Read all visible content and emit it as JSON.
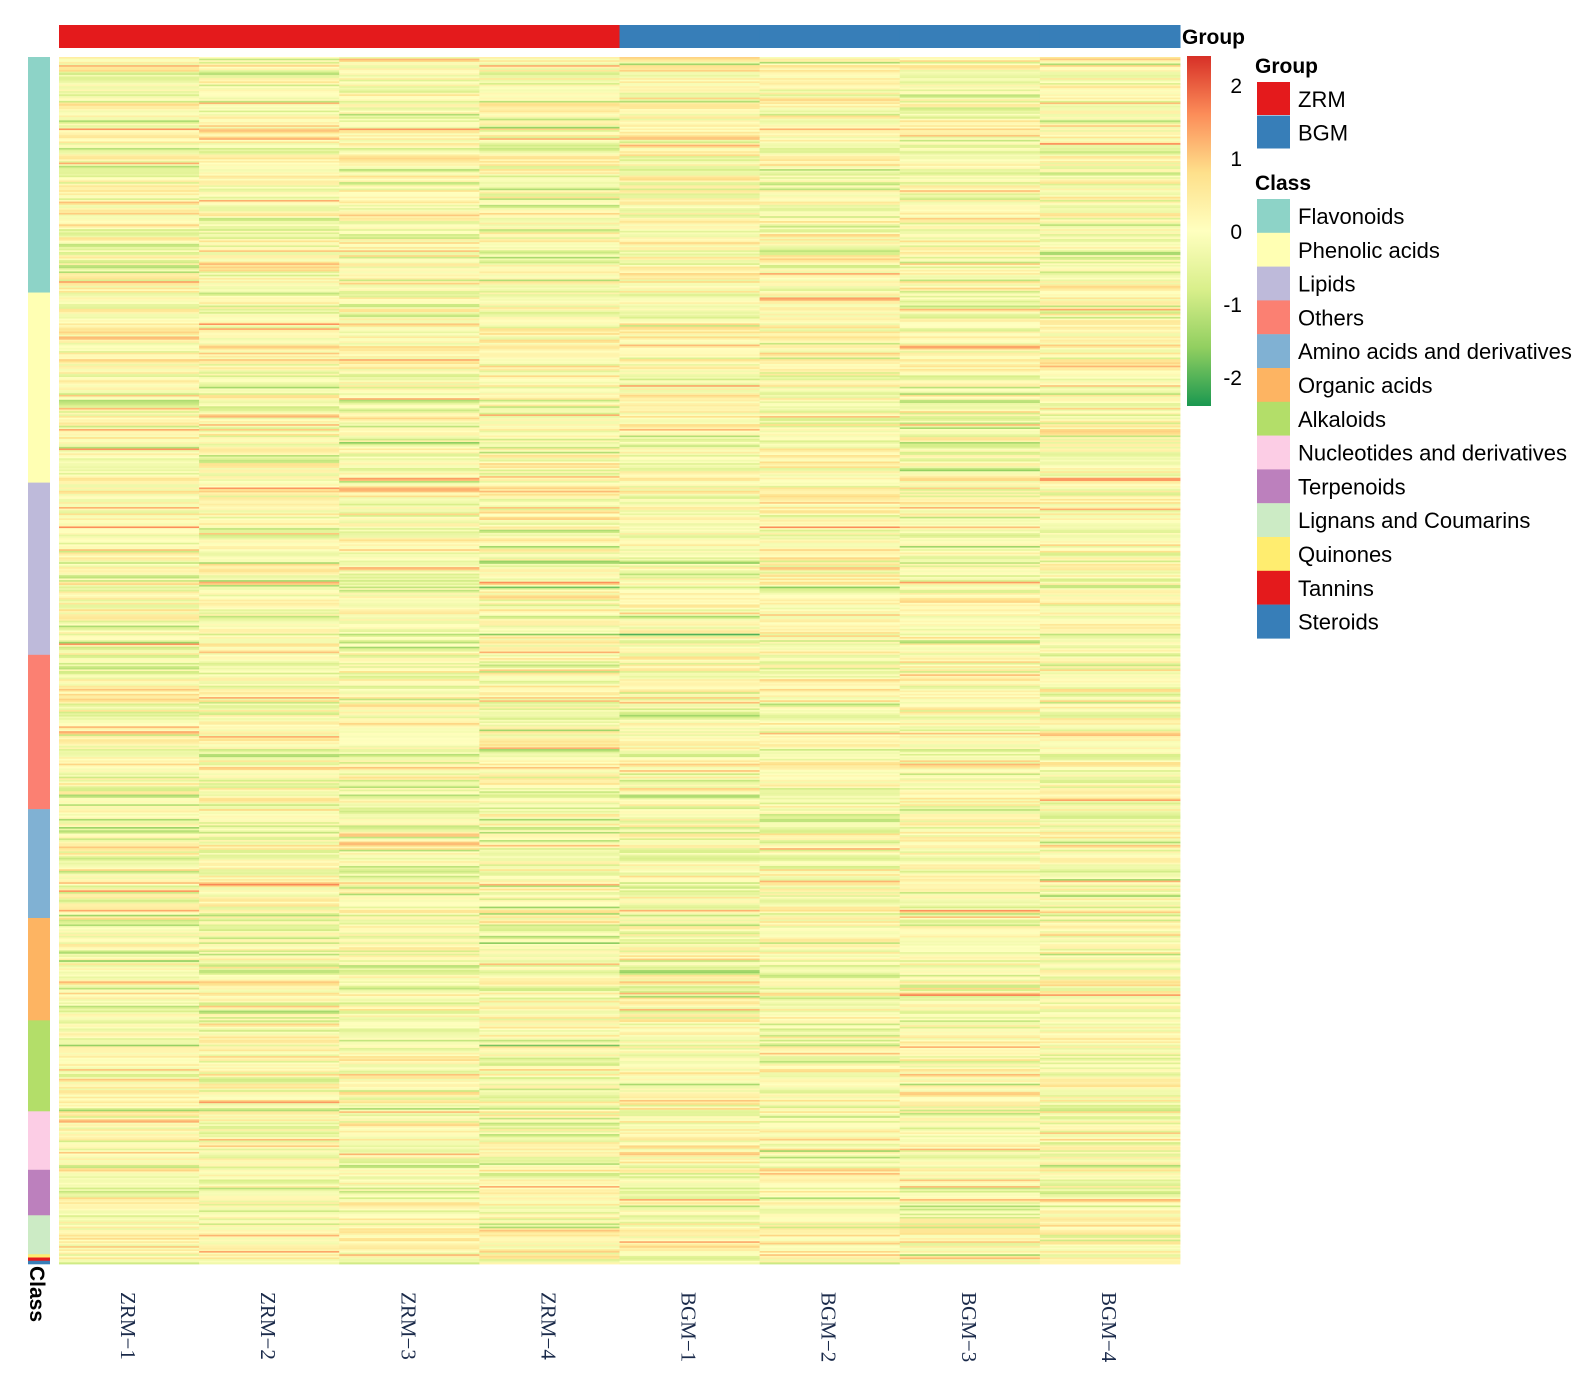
{
  "chart_data": {
    "type": "heatmap",
    "columns": [
      "ZRM−1",
      "ZRM−2",
      "ZRM−3",
      "ZRM−4",
      "BGM−1",
      "BGM−2",
      "BGM−3",
      "BGM−4"
    ],
    "column_groups": [
      "ZRM",
      "ZRM",
      "ZRM",
      "ZRM",
      "BGM",
      "BGM",
      "BGM",
      "BGM"
    ],
    "row_annotation_label": "Class",
    "column_annotation_label": "Group",
    "color_scale": {
      "min": -2.4,
      "max": 2.4,
      "ticks": [
        "2",
        "1",
        "0",
        "-1",
        "-2"
      ],
      "colors": [
        "#1a9850",
        "#91cf60",
        "#d9ef8b",
        "#ffffbf",
        "#fee08b",
        "#fc8d59",
        "#d73027"
      ]
    },
    "group_legend": {
      "title": "Group",
      "items": [
        {
          "name": "ZRM",
          "color": "#e41a1c"
        },
        {
          "name": "BGM",
          "color": "#377eb8"
        }
      ]
    },
    "class_legend": {
      "title": "Class",
      "items": [
        {
          "name": "Flavonoids",
          "color": "#8dd3c7",
          "rows": 145
        },
        {
          "name": "Phenolic acids",
          "color": "#ffffb3",
          "rows": 117
        },
        {
          "name": "Lipids",
          "color": "#bebada",
          "rows": 106
        },
        {
          "name": "Others",
          "color": "#fb8072",
          "rows": 95
        },
        {
          "name": "Amino acids and derivatives",
          "color": "#80b1d3",
          "rows": 67
        },
        {
          "name": "Organic acids",
          "color": "#fdb462",
          "rows": 63
        },
        {
          "name": "Alkaloids",
          "color": "#b3de69",
          "rows": 56
        },
        {
          "name": "Nucleotides and derivatives",
          "color": "#fccde5",
          "rows": 36
        },
        {
          "name": "Terpenoids",
          "color": "#bc80bd",
          "rows": 28
        },
        {
          "name": "Lignans and Coumarins",
          "color": "#ccebc5",
          "rows": 24
        },
        {
          "name": "Quinones",
          "color": "#ffed6f",
          "rows": 2
        },
        {
          "name": "Tannins",
          "color": "#e41a1c",
          "rows": 2
        },
        {
          "name": "Steroids",
          "color": "#377eb8",
          "rows": 2
        }
      ]
    }
  }
}
